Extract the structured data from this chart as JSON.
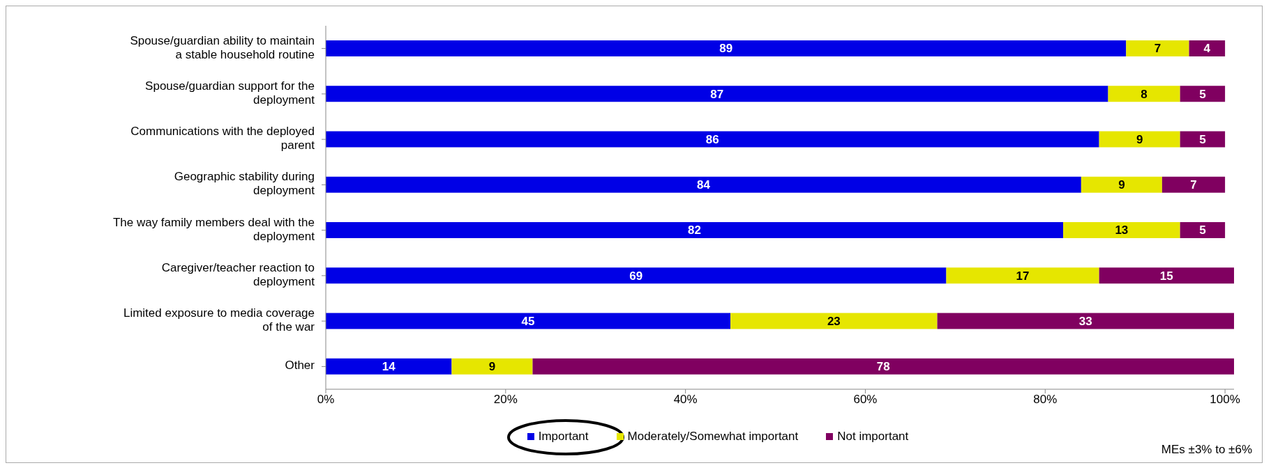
{
  "chart_data": {
    "type": "bar",
    "orientation": "horizontal",
    "stacked": true,
    "categories": [
      "Spouse/guardian ability to maintain a stable household routine",
      "Spouse/guardian support for the deployment",
      "Communications with the deployed parent",
      "Geographic stability during deployment",
      "The way family members deal with the deployment",
      "Caregiver/teacher reaction to deployment",
      "Limited exposure to media coverage of the war",
      "Other"
    ],
    "series": [
      {
        "name": "Important",
        "color": "#0000e6",
        "values": [
          89,
          87,
          86,
          84,
          82,
          69,
          45,
          14
        ]
      },
      {
        "name": "Moderately/Somewhat important",
        "color": "#e6e600",
        "values": [
          7,
          8,
          9,
          9,
          13,
          17,
          23,
          9
        ]
      },
      {
        "name": "Not important",
        "color": "#800060",
        "values": [
          4,
          5,
          5,
          7,
          5,
          15,
          33,
          78
        ]
      }
    ],
    "xlim": [
      0,
      101
    ],
    "xticks": [
      {
        "value": 0,
        "label": "0%"
      },
      {
        "value": 20,
        "label": "20%"
      },
      {
        "value": 40,
        "label": "40%"
      },
      {
        "value": 60,
        "label": "60%"
      },
      {
        "value": 80,
        "label": "80%"
      },
      {
        "value": 100,
        "label": "100%"
      }
    ],
    "data_labels": true,
    "legend": "bottom",
    "grid": false,
    "annotations": [
      "MEs ±3% to ±6%"
    ]
  }
}
